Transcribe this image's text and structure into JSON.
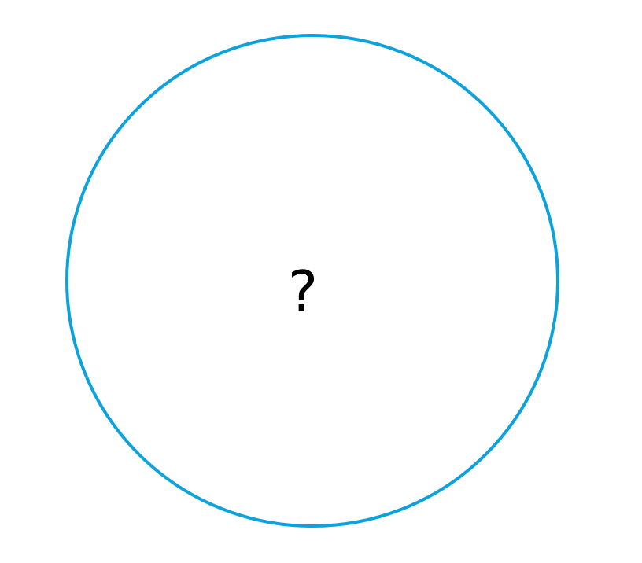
{
  "diagram": {
    "center_label": "?",
    "circle_color": "#0EA2DD",
    "background_color": "#FFFFFF",
    "text_color": "#000000"
  }
}
